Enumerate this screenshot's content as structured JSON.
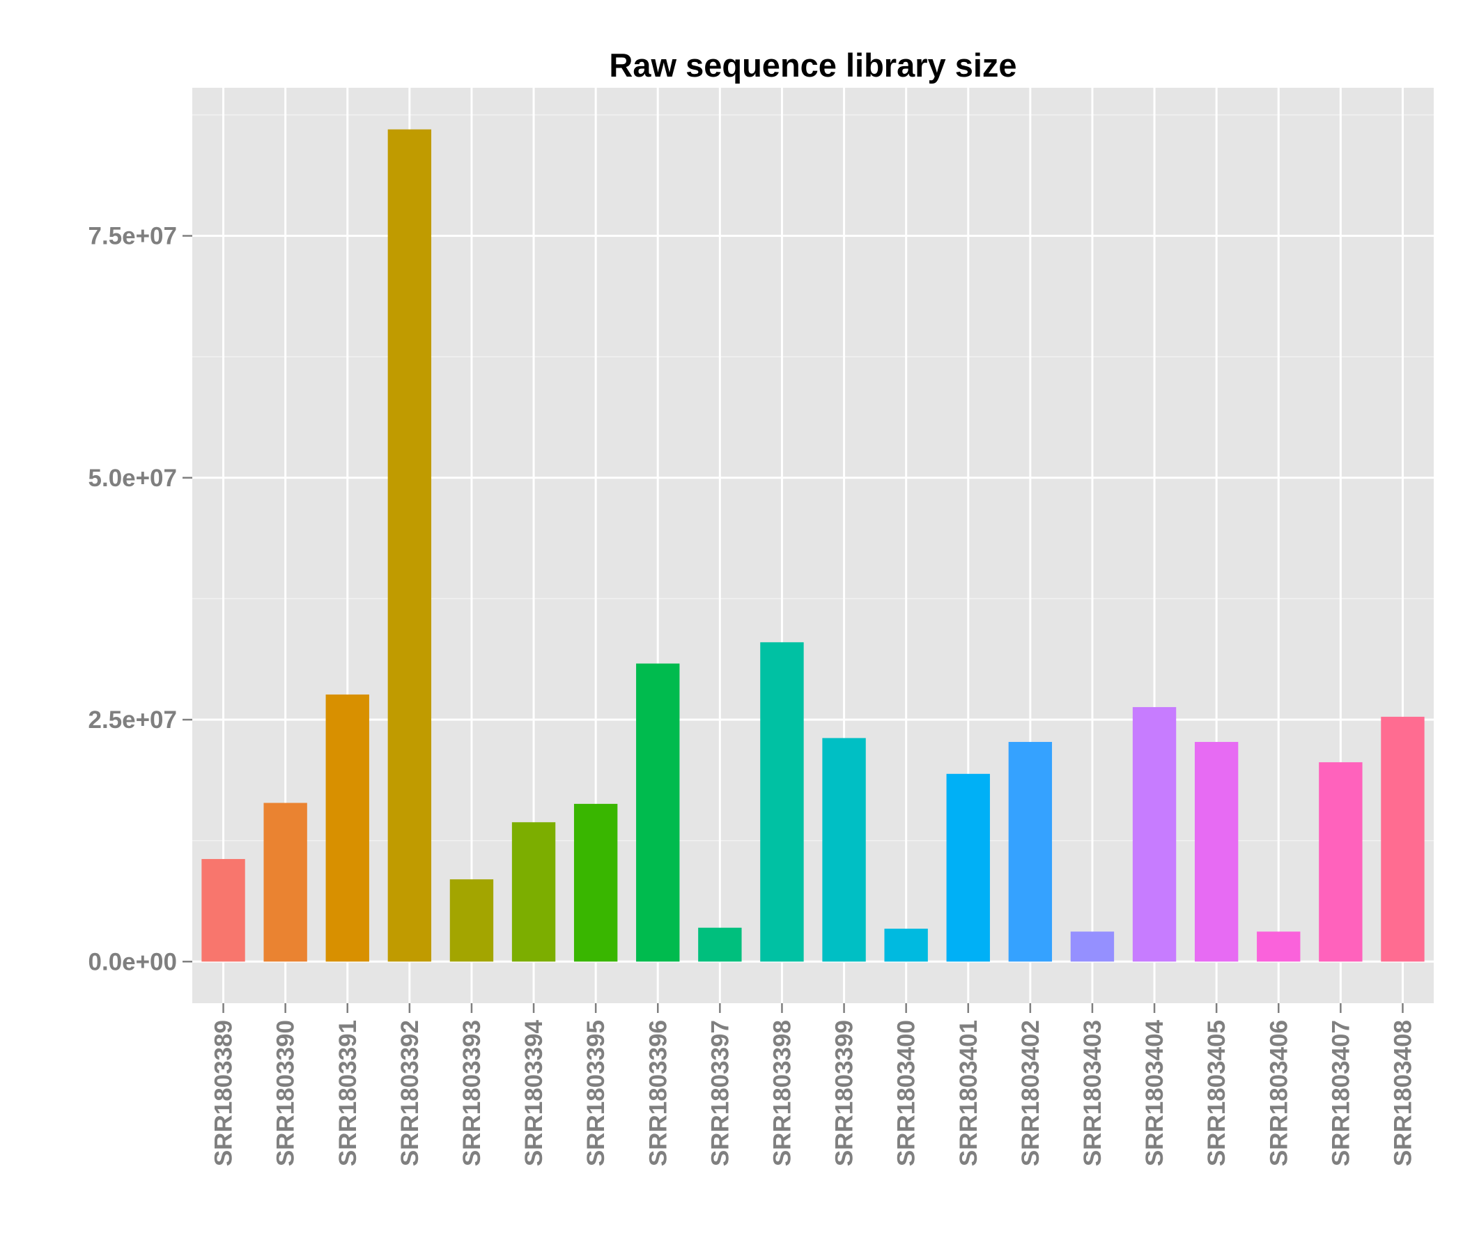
{
  "chart_data": {
    "type": "bar",
    "title": "Raw sequence library size",
    "xlabel": "",
    "ylabel": "",
    "categories": [
      "SRR1803389",
      "SRR1803390",
      "SRR1803391",
      "SRR1803392",
      "SRR1803393",
      "SRR1803394",
      "SRR1803395",
      "SRR1803396",
      "SRR1803397",
      "SRR1803398",
      "SRR1803399",
      "SRR1803400",
      "SRR1803401",
      "SRR1803402",
      "SRR1803403",
      "SRR1803404",
      "SRR1803405",
      "SRR1803406",
      "SRR1803407",
      "SRR1803408"
    ],
    "values": [
      10600000,
      16400000,
      27600000,
      86000000,
      8500000,
      14400000,
      16300000,
      30800000,
      3500000,
      33000000,
      23100000,
      3400000,
      19400000,
      22700000,
      3100000,
      26300000,
      22700000,
      3100000,
      20600000,
      25300000
    ],
    "colors": [
      "#F8766D",
      "#EA8331",
      "#D89000",
      "#C09B00",
      "#A3A500",
      "#7CAE00",
      "#39B600",
      "#00BB4E",
      "#00BF7D",
      "#00C1A3",
      "#00BFC4",
      "#00BAE0",
      "#00B0F6",
      "#35A2FF",
      "#9590FF",
      "#C77CFF",
      "#E76BF3",
      "#FA62DB",
      "#FF62BC",
      "#FF6C91"
    ],
    "y_ticks": [
      0,
      25000000,
      50000000,
      75000000
    ],
    "y_tick_labels": [
      "0.0e+00",
      "2.5e+07",
      "5.0e+07",
      "7.5e+07"
    ],
    "ylim": [
      -4300000,
      90300000
    ],
    "grid": true,
    "panel_background": "#E5E5E5",
    "legend": "none"
  }
}
